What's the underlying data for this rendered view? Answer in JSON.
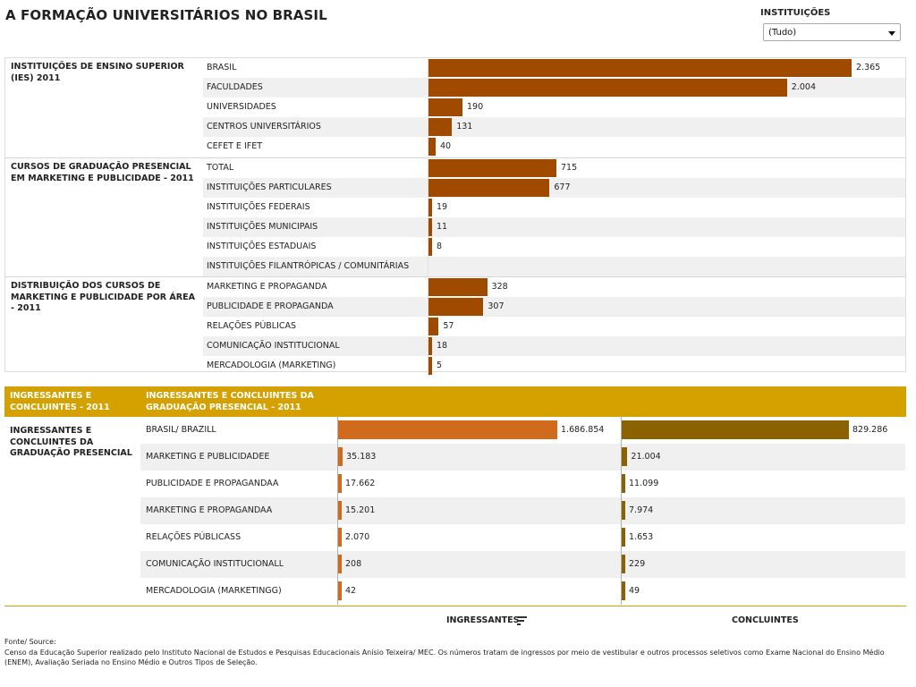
{
  "title": "A FORMAÇÃO UNIVERSITÁRIOS NO BRASIL",
  "filter": {
    "label": "INSTITUIÇÕES",
    "selected": "(Tudo)"
  },
  "colors": {
    "top_bar": "#a04a00",
    "ingressantes": "#d06b1e",
    "concluintes": "#8b6200",
    "header_band": "#d4a100"
  },
  "sections": [
    {
      "label": "INSTITUIÇÕES DE ENSINO SUPERIOR (IES) 2011",
      "rows": [
        {
          "label": "BRASIL",
          "display": "2.365",
          "value": 2365
        },
        {
          "label": "FACULDADES",
          "display": "2.004",
          "value": 2004
        },
        {
          "label": "UNIVERSIDADES",
          "display": "190",
          "value": 190
        },
        {
          "label": "CENTROS UNIVERSITÁRIOS",
          "display": "131",
          "value": 131
        },
        {
          "label": "CEFET E IFET",
          "display": "40",
          "value": 40
        }
      ]
    },
    {
      "label": "CURSOS DE GRADUAÇÃO PRESENCIAL EM MARKETING E PUBLICIDADE - 2011",
      "rows": [
        {
          "label": "TOTAL",
          "display": "715",
          "value": 715
        },
        {
          "label": "INSTITUIÇÕES PARTICULARES",
          "display": "677",
          "value": 677
        },
        {
          "label": "INSTITUIÇÕES FEDERAIS",
          "display": "19",
          "value": 19
        },
        {
          "label": "INSTITUIÇÕES MUNICIPAIS",
          "display": "11",
          "value": 11
        },
        {
          "label": "INSTITUIÇÕES ESTADUAIS",
          "display": "8",
          "value": 8
        },
        {
          "label": "INSTITUIÇÕES FILANTRÓPICAS / COMUNITÁRIAS",
          "display": "",
          "value": 0
        }
      ]
    },
    {
      "label": "DISTRIBUIÇÃO DOS CURSOS DE MARKETING E PUBLICIDADE POR ÁREA - 2011",
      "rows": [
        {
          "label": "MARKETING E PROPAGANDA",
          "display": "328",
          "value": 328
        },
        {
          "label": "PUBLICIDADE E PROPAGANDA",
          "display": "307",
          "value": 307
        },
        {
          "label": "RELAÇÕES PÚBLICAS",
          "display": "57",
          "value": 57
        },
        {
          "label": "COMUNICAÇÃO INSTITUCIONAL",
          "display": "18",
          "value": 18
        },
        {
          "label": "MERCADOLOGIA (MARKETING)",
          "display": "5",
          "value": 5
        }
      ]
    }
  ],
  "bottom": {
    "header_left": "INGRESSANTES E CONCLUINTES - 2011",
    "header_right": "INGRESSANTES E CONCLUINTES DA GRADUAÇÃO PRESENCIAL - 2011",
    "row_label": "INGRESSANTES E CONCLUINTES DA GRADUAÇÃO PRESENCIAL",
    "legend_ingressantes": "INGRESSANTES",
    "legend_concluintes": "CONCLUINTES"
  },
  "chart_data": [
    {
      "type": "bar",
      "title": "INSTITUIÇÕES DE ENSINO SUPERIOR (IES) 2011",
      "categories": [
        "BRASIL",
        "FACULDADES",
        "UNIVERSIDADES",
        "CENTROS UNIVERSITÁRIOS",
        "CEFET E IFET"
      ],
      "values": [
        2365,
        2004,
        190,
        131,
        40
      ]
    },
    {
      "type": "bar",
      "title": "CURSOS DE GRADUAÇÃO PRESENCIAL EM MARKETING E PUBLICIDADE - 2011",
      "categories": [
        "TOTAL",
        "INSTITUIÇÕES PARTICULARES",
        "INSTITUIÇÕES FEDERAIS",
        "INSTITUIÇÕES MUNICIPAIS",
        "INSTITUIÇÕES ESTADUAIS",
        "INSTITUIÇÕES FILANTRÓPICAS / COMUNITÁRIAS"
      ],
      "values": [
        715,
        677,
        19,
        11,
        8,
        null
      ]
    },
    {
      "type": "bar",
      "title": "DISTRIBUIÇÃO DOS CURSOS DE MARKETING E PUBLICIDADE POR ÁREA - 2011",
      "categories": [
        "MARKETING E PROPAGANDA",
        "PUBLICIDADE E PROPAGANDA",
        "RELAÇÕES PÚBLICAS",
        "COMUNICAÇÃO INSTITUCIONAL",
        "MERCADOLOGIA (MARKETING)"
      ],
      "values": [
        328,
        307,
        57,
        18,
        5
      ]
    },
    {
      "type": "bar",
      "title": "INGRESSANTES E CONCLUINTES DA GRADUAÇÃO PRESENCIAL - 2011",
      "categories": [
        "BRASIL/ BRAZILL",
        "MARKETING E PUBLICIDADEE",
        "PUBLICIDADE E PROPAGANDAA",
        "MARKETING E PROPAGANDAA",
        "RELAÇÕES PÚBLICASS",
        "COMUNICAÇÃO INSTITUCIONALL",
        "MERCADOLOGIA (MARKETINGG)"
      ],
      "series": [
        {
          "name": "INGRESSANTES",
          "values": [
            1686854,
            35183,
            17662,
            15201,
            2070,
            208,
            42
          ],
          "display": [
            "1.686.854",
            "35.183",
            "17.662",
            "15.201",
            "2.070",
            "208",
            "42"
          ]
        },
        {
          "name": "CONCLUINTES",
          "values": [
            829286,
            21004,
            11099,
            7974,
            1653,
            229,
            49
          ],
          "display": [
            "829.286",
            "21.004",
            "11.099",
            "7.974",
            "1.653",
            "229",
            "49"
          ]
        }
      ]
    }
  ],
  "source": {
    "label": "Fonte/ Source:",
    "text": "Censo da Educação Superior realizado pelo Instituto Nacional de Estudos e Pesquisas Educacionais Anísio Teixeira/ MEC. Os números tratam de ingressos por meio de vestibular e outros processos seletivos como Exame Nacional do Ensino Médio (ENEM), Avaliação Seriada no Ensino Médio e Outros Tipos de Seleção."
  }
}
